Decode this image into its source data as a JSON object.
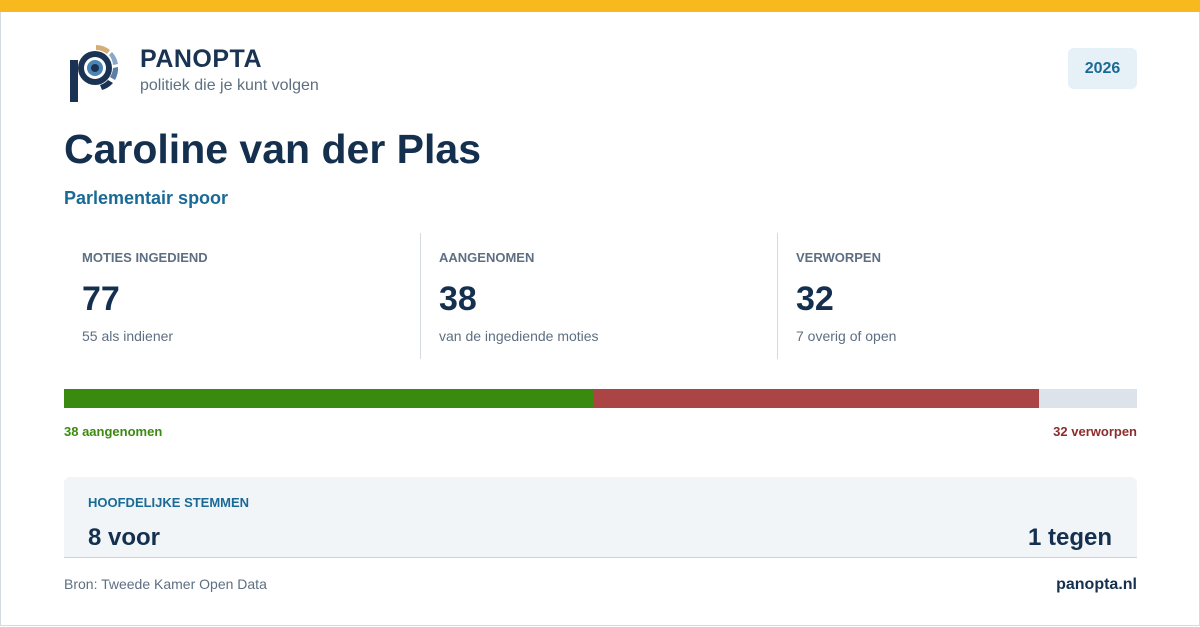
{
  "header": {
    "brand": "PANOPTA",
    "tagline": "politiek die je kunt volgen",
    "year": "2026"
  },
  "person": {
    "name": "Caroline van der Plas",
    "subtitle": "Parlementair spoor"
  },
  "stats": [
    {
      "label": "MOTIES INGEDIEND",
      "value": 77,
      "note": "55 als indiener"
    },
    {
      "label": "AANGENOMEN",
      "value": 38,
      "note": "van de ingediende moties"
    },
    {
      "label": "VERWORPEN",
      "value": 32,
      "note": "7 overig of open"
    }
  ],
  "bar": {
    "segments": [
      {
        "value": 38,
        "color": "#3a8a10",
        "label": "38 aangenomen"
      },
      {
        "value": 32,
        "color": "#ab4444",
        "label": "32 verworpen"
      },
      {
        "value": 7,
        "color": "#dde3ea"
      }
    ]
  },
  "votes": {
    "label": "HOOFDELIJKE STEMMEN",
    "for": "8 voor",
    "against": "1 tegen"
  },
  "footer": {
    "source": "Bron: Tweede Kamer Open Data",
    "site": "panopta.nl"
  }
}
